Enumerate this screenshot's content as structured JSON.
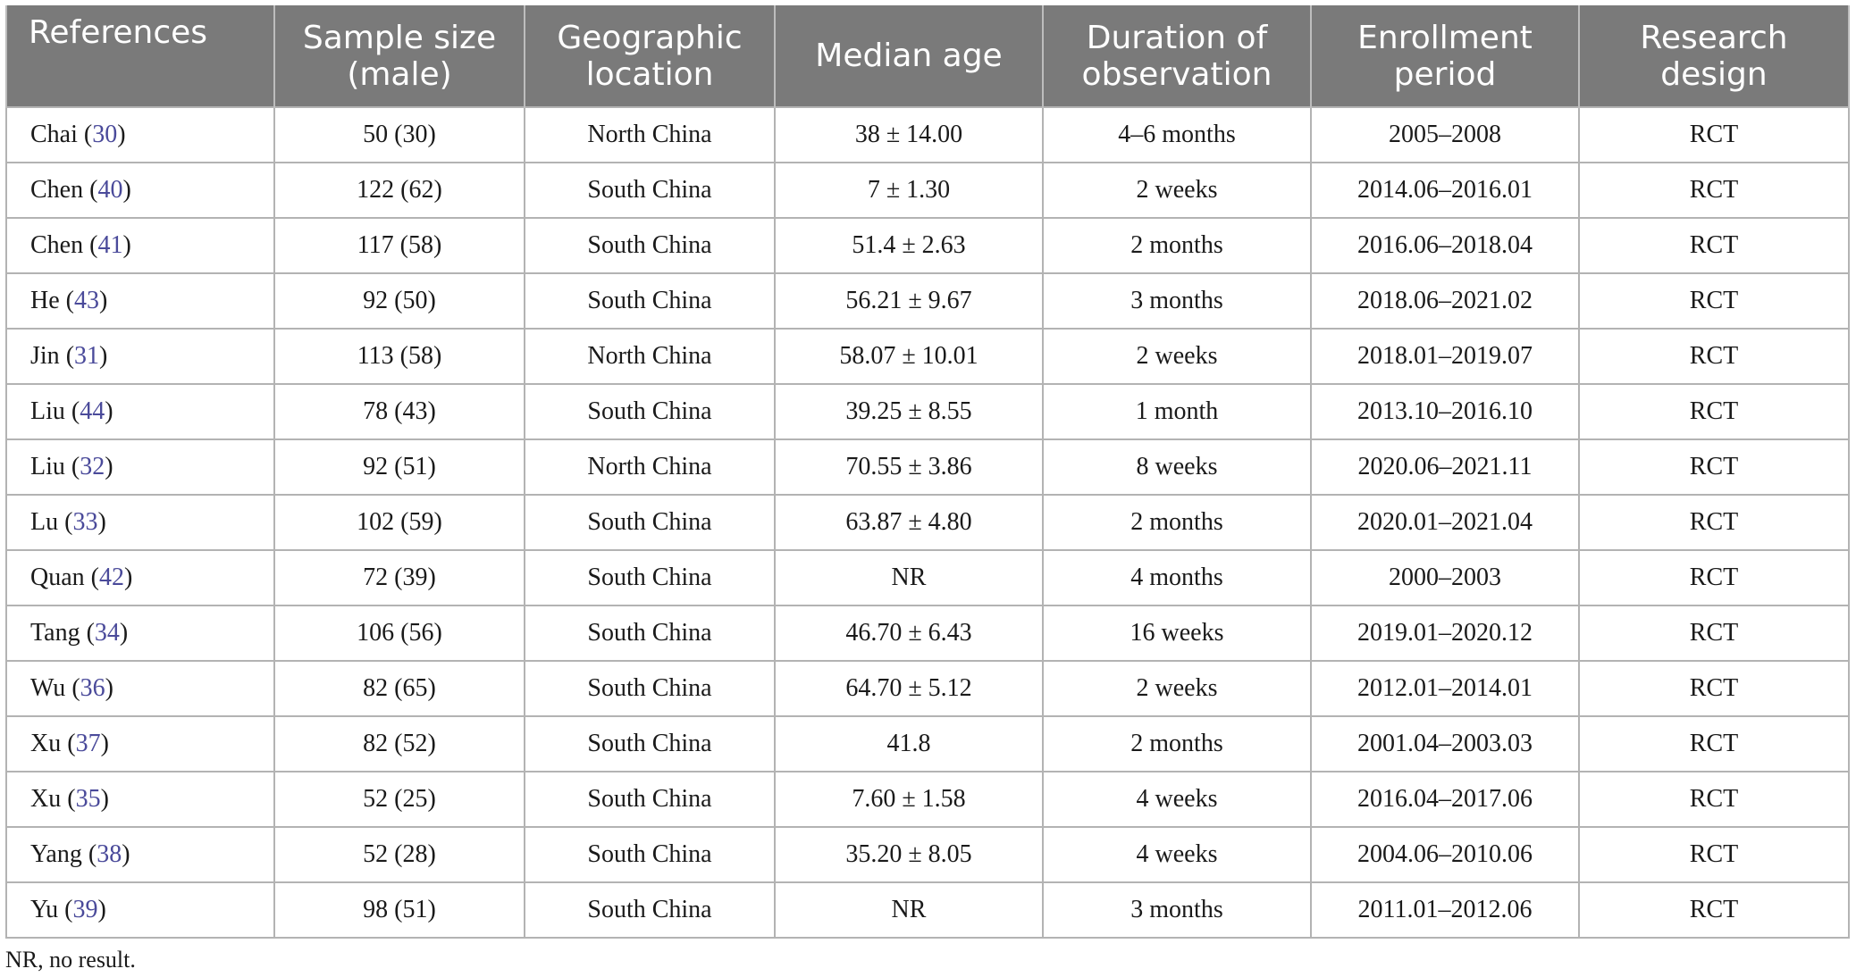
{
  "table": {
    "headers": [
      "References",
      "Sample size\n(male)",
      "Geographic\nlocation",
      "Median age",
      "Duration of\nobservation",
      "Enrollment\nperiod",
      "Research\ndesign"
    ],
    "rows": [
      {
        "author": "Chai",
        "ref": "30",
        "sample": "50 (30)",
        "location": "North China",
        "age": "38 ± 14.00",
        "duration": "4–6 months",
        "period": "2005–2008",
        "design": "RCT"
      },
      {
        "author": "Chen",
        "ref": "40",
        "sample": "122 (62)",
        "location": "South China",
        "age": "7 ± 1.30",
        "duration": "2 weeks",
        "period": "2014.06–2016.01",
        "design": "RCT"
      },
      {
        "author": "Chen",
        "ref": "41",
        "sample": "117 (58)",
        "location": "South China",
        "age": "51.4 ± 2.63",
        "duration": "2 months",
        "period": "2016.06–2018.04",
        "design": "RCT"
      },
      {
        "author": "He",
        "ref": "43",
        "sample": "92 (50)",
        "location": "South China",
        "age": "56.21 ± 9.67",
        "duration": "3 months",
        "period": "2018.06–2021.02",
        "design": "RCT"
      },
      {
        "author": "Jin",
        "ref": "31",
        "sample": "113 (58)",
        "location": "North China",
        "age": "58.07 ± 10.01",
        "duration": "2 weeks",
        "period": "2018.01–2019.07",
        "design": "RCT"
      },
      {
        "author": "Liu",
        "ref": "44",
        "sample": "78 (43)",
        "location": "South China",
        "age": "39.25 ± 8.55",
        "duration": "1 month",
        "period": "2013.10–2016.10",
        "design": "RCT"
      },
      {
        "author": "Liu",
        "ref": "32",
        "sample": "92 (51)",
        "location": "North China",
        "age": "70.55 ± 3.86",
        "duration": "8 weeks",
        "period": "2020.06–2021.11",
        "design": "RCT"
      },
      {
        "author": "Lu",
        "ref": "33",
        "sample": "102 (59)",
        "location": "South China",
        "age": "63.87 ± 4.80",
        "duration": "2 months",
        "period": "2020.01–2021.04",
        "design": "RCT"
      },
      {
        "author": "Quan",
        "ref": "42",
        "sample": "72 (39)",
        "location": "South China",
        "age": "NR",
        "duration": "4 months",
        "period": "2000–2003",
        "design": "RCT"
      },
      {
        "author": "Tang",
        "ref": "34",
        "sample": "106 (56)",
        "location": "South China",
        "age": "46.70 ± 6.43",
        "duration": "16 weeks",
        "period": "2019.01–2020.12",
        "design": "RCT"
      },
      {
        "author": "Wu",
        "ref": "36",
        "sample": "82 (65)",
        "location": "South China",
        "age": "64.70 ± 5.12",
        "duration": "2 weeks",
        "period": "2012.01–2014.01",
        "design": "RCT"
      },
      {
        "author": "Xu",
        "ref": "37",
        "sample": "82 (52)",
        "location": "South China",
        "age": "41.8",
        "duration": "2 months",
        "period": "2001.04–2003.03",
        "design": "RCT"
      },
      {
        "author": "Xu",
        "ref": "35",
        "sample": "52 (25)",
        "location": "South China",
        "age": "7.60 ± 1.58",
        "duration": "4 weeks",
        "period": "2016.04–2017.06",
        "design": "RCT"
      },
      {
        "author": "Yang",
        "ref": "38",
        "sample": "52 (28)",
        "location": "South China",
        "age": "35.20 ± 8.05",
        "duration": "4 weeks",
        "period": "2004.06–2010.06",
        "design": "RCT"
      },
      {
        "author": "Yu",
        "ref": "39",
        "sample": "98 (51)",
        "location": "South China",
        "age": "NR",
        "duration": "3 months",
        "period": "2011.01–2012.06",
        "design": "RCT"
      }
    ]
  },
  "footnote": "NR, no result."
}
